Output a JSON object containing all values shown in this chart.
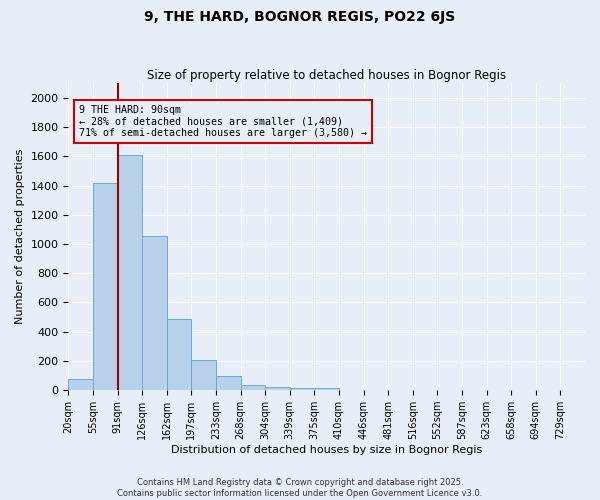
{
  "title": "9, THE HARD, BOGNOR REGIS, PO22 6JS",
  "subtitle": "Size of property relative to detached houses in Bognor Regis",
  "xlabel": "Distribution of detached houses by size in Bognor Regis",
  "ylabel": "Number of detached properties",
  "categories": [
    "20sqm",
    "55sqm",
    "91sqm",
    "126sqm",
    "162sqm",
    "197sqm",
    "233sqm",
    "268sqm",
    "304sqm",
    "339sqm",
    "375sqm",
    "410sqm",
    "446sqm",
    "481sqm",
    "516sqm",
    "552sqm",
    "587sqm",
    "623sqm",
    "658sqm",
    "694sqm",
    "729sqm"
  ],
  "bar_heights": [
    75,
    1420,
    1610,
    1055,
    485,
    205,
    100,
    35,
    20,
    15,
    13,
    0,
    0,
    0,
    0,
    0,
    0,
    0,
    0,
    0,
    0
  ],
  "bar_color": "#b8d0ea",
  "bar_edge_color": "#6aaad4",
  "vline_index": 2.0,
  "vline_color": "#990000",
  "annotation_box_color": "#cc0000",
  "bg_color": "#e8eef8",
  "grid_color": "#ffffff",
  "ylim": [
    0,
    2100
  ],
  "yticks": [
    0,
    200,
    400,
    600,
    800,
    1000,
    1200,
    1400,
    1600,
    1800,
    2000
  ],
  "ann_line1": "9 THE HARD: 90sqm",
  "ann_line2": "← 28% of detached houses are smaller (1,409)",
  "ann_line3": "71% of semi-detached houses are larger (3,580) →",
  "footer1": "Contains HM Land Registry data © Crown copyright and database right 2025.",
  "footer2": "Contains public sector information licensed under the Open Government Licence v3.0."
}
